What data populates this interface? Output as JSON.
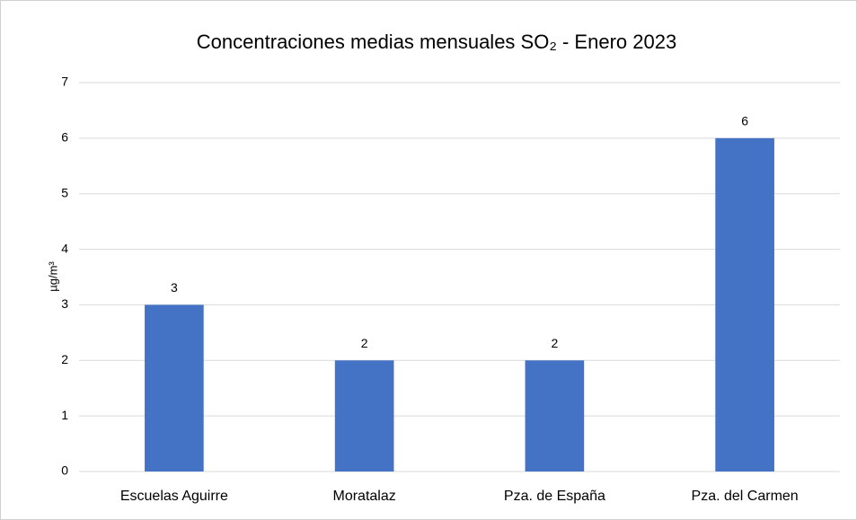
{
  "chart_data": {
    "type": "bar",
    "title": "Concentraciones medias mensuales SO₂ - Enero 2023",
    "y_label": "µg/m³",
    "categories": [
      "Escuelas Aguirre",
      "Moratalaz",
      "Pza. de España",
      "Pza. del Carmen"
    ],
    "values": [
      3,
      2,
      2,
      6
    ],
    "color": "#4472c4",
    "ylim": [
      0,
      7
    ],
    "yticks": [
      0,
      1,
      2,
      3,
      4,
      5,
      6,
      7
    ],
    "grid": true,
    "data_labels": true
  }
}
